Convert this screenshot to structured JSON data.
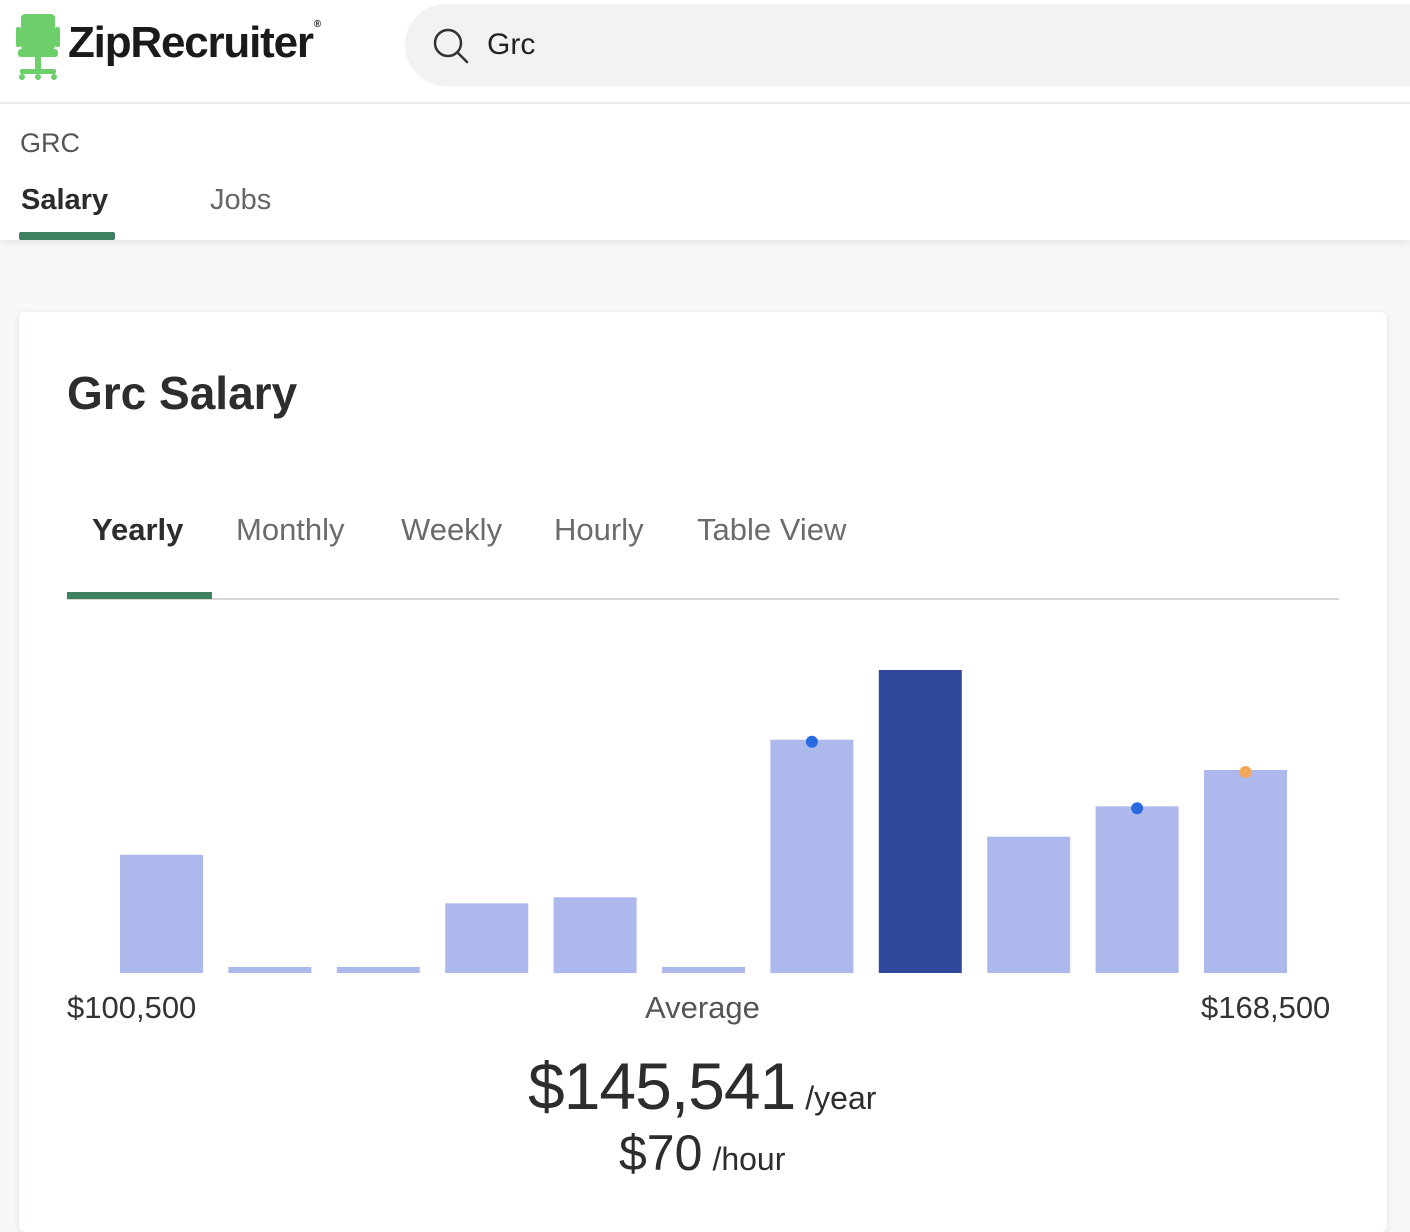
{
  "header": {
    "brand": "ZipRecruiter",
    "brand_mark": "®",
    "search": {
      "value": "Grc",
      "placeholder": ""
    }
  },
  "subnav": {
    "breadcrumb": "GRC",
    "tabs": [
      {
        "label": "Salary",
        "active": true
      },
      {
        "label": "Jobs",
        "active": false
      }
    ]
  },
  "card": {
    "title": "Grc Salary",
    "period_tabs": [
      {
        "label": "Yearly",
        "active": true
      },
      {
        "label": "Monthly",
        "active": false
      },
      {
        "label": "Weekly",
        "active": false
      },
      {
        "label": "Hourly",
        "active": false
      },
      {
        "label": "Table View",
        "active": false
      }
    ],
    "range_min": "$100,500",
    "range_max": "$168,500",
    "average_label": "Average",
    "average_amount": "$145,541",
    "average_unit": "/year",
    "hourly_amount": "$70",
    "hourly_unit": "/hour"
  },
  "colors": {
    "accent_green": "#3f7f62",
    "bar_light": "#adb9ec",
    "bar_highlight": "#30489c",
    "marker_blue": "#2a6ae0",
    "marker_orange": "#f2a65a"
  },
  "chart_data": {
    "type": "bar",
    "title": "",
    "xlabel": "",
    "ylabel": "",
    "x_range": [
      "$100,500",
      "$168,500"
    ],
    "values": [
      39,
      2,
      2,
      23,
      25,
      2,
      77,
      100,
      45,
      55,
      67
    ],
    "highlight_index": 7,
    "markers": [
      {
        "bar_index": 6,
        "color": "blue"
      },
      {
        "bar_index": 9,
        "color": "blue"
      },
      {
        "bar_index": 10,
        "color": "orange"
      }
    ],
    "ylim": [
      0,
      100
    ]
  }
}
